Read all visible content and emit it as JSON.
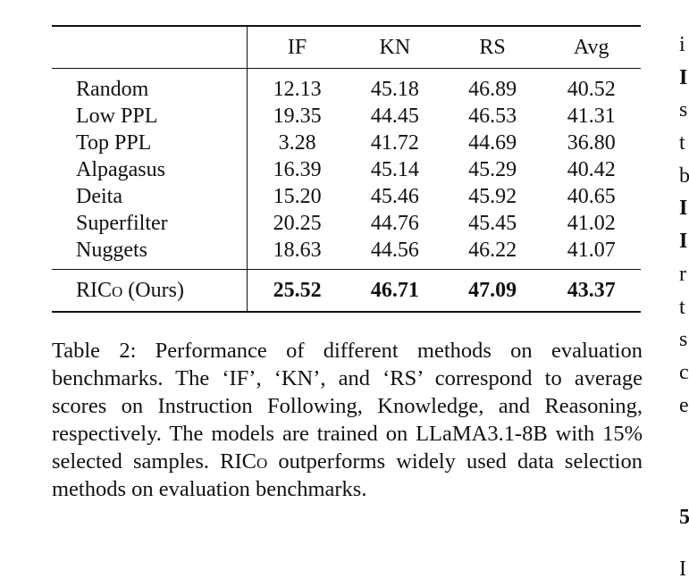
{
  "table": {
    "headers": [
      "",
      "IF",
      "KN",
      "RS",
      "Avg"
    ],
    "rows": [
      {
        "method": "Random",
        "if": "12.13",
        "kn": "45.18",
        "rs": "46.89",
        "avg": "40.52"
      },
      {
        "method": "Low PPL",
        "if": "19.35",
        "kn": "44.45",
        "rs": "46.53",
        "avg": "41.31"
      },
      {
        "method": "Top PPL",
        "if": "3.28",
        "kn": "41.72",
        "rs": "44.69",
        "avg": "36.80"
      },
      {
        "method": "Alpagasus",
        "if": "16.39",
        "kn": "45.14",
        "rs": "45.29",
        "avg": "40.42"
      },
      {
        "method": "Deita",
        "if": "15.20",
        "kn": "45.46",
        "rs": "45.92",
        "avg": "40.65"
      },
      {
        "method": "Superfilter",
        "if": "20.25",
        "kn": "44.76",
        "rs": "45.45",
        "avg": "41.02"
      },
      {
        "method": "Nuggets",
        "if": "18.63",
        "kn": "44.56",
        "rs": "46.22",
        "avg": "41.07"
      }
    ],
    "ours": {
      "method_prefix": "RIC",
      "method_sc": "o",
      "method_suffix": " (Ours)",
      "if": "25.52",
      "kn": "46.71",
      "rs": "47.09",
      "avg": "43.37"
    }
  },
  "caption": {
    "part1": "Table 2: Performance of different methods on evaluation benchmarks. The ‘IF’, ‘KN’, and ‘RS’ correspond to average scores on Instruction Following, Knowledge, and Reasoning, respectively. The models are trained on LLaMA3.1-8B with 15% selected samples. RIC",
    "sc": "o",
    "part2": " outperforms widely used data selection methods on evaluation benchmarks."
  },
  "right_column": {
    "fragments": [
      "i",
      "I",
      "s",
      "t",
      "b",
      "I",
      "I",
      "r",
      "t",
      "s",
      "c",
      "e"
    ],
    "bold_indices": [
      1,
      5,
      6
    ],
    "section_number": "5",
    "last_fragment": "I"
  }
}
